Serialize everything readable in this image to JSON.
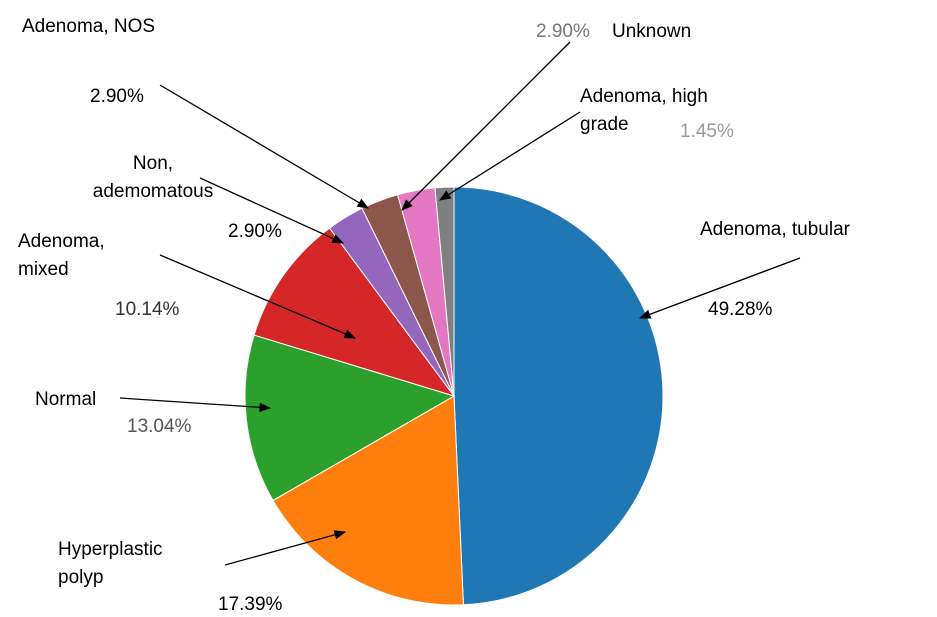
{
  "chart_data": {
    "type": "pie",
    "categories": [
      "Adenoma, tubular",
      "Hyperplastic\npolyp",
      "Normal",
      "Adenoma,\nmixed",
      "Non,\nademomatous",
      "Adenoma, NOS",
      "Unknown",
      "Adenoma, high\ngrade"
    ],
    "values": [
      49.28,
      17.39,
      13.04,
      10.14,
      2.9,
      2.9,
      2.9,
      1.45
    ],
    "value_labels": [
      "49.28%",
      "17.39%",
      "13.04%",
      "10.14%",
      "2.90%",
      "2.90%",
      "2.90%",
      "1.45%"
    ],
    "colors": [
      "#1f77b4",
      "#ff7f0e",
      "#2ca02c",
      "#d62728",
      "#9467bd",
      "#8c564b",
      "#e377c2",
      "#7f7f7f"
    ]
  }
}
